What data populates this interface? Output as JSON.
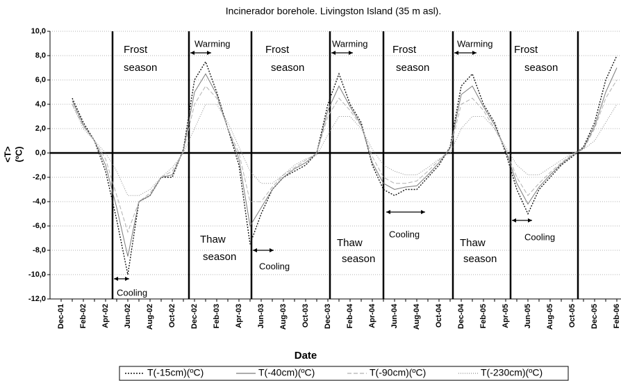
{
  "chart_data": {
    "type": "line",
    "title": "Incinerador borehole. Livingston Island (35 m asl).",
    "x_label": "Date",
    "y_label": [
      "<T>",
      "(ºC)"
    ],
    "categories": [
      "Dec-01",
      null,
      "Feb-02",
      null,
      "Apr-02",
      null,
      "Jun-02",
      null,
      "Aug-02",
      null,
      "Oct-02",
      null,
      "Dec-02",
      null,
      "Feb-03",
      null,
      "Apr-03",
      null,
      "Jun-03",
      null,
      "Aug-03",
      null,
      "Oct-03",
      null,
      "Dec-03",
      null,
      "Feb-04",
      null,
      "Apr-04",
      null,
      "Jun-04",
      null,
      "Aug-04",
      null,
      "Oct-04",
      null,
      "Dec-04",
      null,
      "Feb-05",
      null,
      "Apr-05",
      null,
      "Jun-05",
      null,
      "Aug-05",
      null,
      "Oct-05",
      null,
      "Dec-05",
      null,
      "Feb-06"
    ],
    "series": [
      {
        "name": "T(-15cm)(ºC)",
        "color": "#111111",
        "dash": "2,2",
        "values": [
          null,
          4.5,
          2.5,
          1.0,
          -1.5,
          -5.5,
          -10.0,
          -4.0,
          -3.5,
          -2.0,
          -2.0,
          0.3,
          6.0,
          7.5,
          5.0,
          2.0,
          -1.0,
          -7.5,
          -5.0,
          -3.0,
          -2.0,
          -1.5,
          -1.0,
          0.0,
          4.0,
          6.5,
          4.0,
          2.5,
          -1.0,
          -3.0,
          -3.5,
          -3.0,
          -3.0,
          -2.0,
          -1.0,
          0.5,
          5.5,
          6.5,
          4.0,
          2.5,
          0.0,
          -3.0,
          -5.0,
          -3.0,
          -2.0,
          -1.0,
          -0.3,
          0.5,
          2.5,
          6.0,
          8.0
        ]
      },
      {
        "name": "T(-40cm)(ºC)",
        "color": "#7a7a7a",
        "dash": "",
        "values": [
          null,
          4.3,
          2.3,
          1.0,
          -1.0,
          -4.5,
          -8.5,
          -4.0,
          -3.5,
          -2.0,
          -1.8,
          0.2,
          5.0,
          6.5,
          4.8,
          2.0,
          -0.5,
          -6.0,
          -4.5,
          -3.0,
          -2.0,
          -1.3,
          -0.8,
          0.0,
          3.5,
          5.5,
          3.8,
          2.3,
          -0.8,
          -2.5,
          -3.0,
          -2.8,
          -2.7,
          -1.8,
          -0.8,
          0.4,
          4.8,
          5.5,
          3.8,
          2.3,
          0.2,
          -2.5,
          -4.2,
          -2.8,
          -1.8,
          -0.9,
          -0.2,
          0.4,
          2.2,
          5.0,
          7.0
        ]
      },
      {
        "name": "T(-90cm)(ºC)",
        "color": "#b0b0b0",
        "dash": "6,3",
        "values": [
          null,
          4.0,
          2.2,
          1.0,
          -0.5,
          -3.5,
          -6.5,
          -4.0,
          -3.3,
          -2.0,
          -1.5,
          0.1,
          4.0,
          5.5,
          4.5,
          2.0,
          0.0,
          -4.0,
          -4.0,
          -2.8,
          -1.8,
          -1.2,
          -0.6,
          0.0,
          3.0,
          4.5,
          3.5,
          2.2,
          -0.3,
          -2.0,
          -2.5,
          -2.5,
          -2.3,
          -1.5,
          -0.6,
          0.3,
          4.0,
          4.5,
          3.5,
          2.0,
          0.3,
          -2.0,
          -3.5,
          -2.5,
          -1.6,
          -0.8,
          -0.1,
          0.3,
          2.0,
          4.5,
          6.0
        ]
      },
      {
        "name": "T(-230cm)(ºC)",
        "color": "#8c8c8c",
        "dash": "1,2",
        "values": [
          null,
          4.0,
          2.0,
          1.0,
          0.0,
          -1.5,
          -3.5,
          -3.5,
          -3.0,
          -2.0,
          -1.2,
          0.0,
          2.0,
          4.0,
          4.0,
          2.5,
          0.5,
          -1.5,
          -2.5,
          -2.5,
          -1.8,
          -1.0,
          -0.5,
          -0.2,
          1.5,
          3.0,
          3.0,
          2.0,
          0.3,
          -1.0,
          -1.5,
          -1.8,
          -1.8,
          -1.2,
          -0.5,
          0.0,
          2.0,
          3.0,
          3.0,
          2.0,
          0.5,
          -1.0,
          -1.8,
          -1.8,
          -1.2,
          -0.6,
          0.0,
          0.3,
          1.0,
          2.5,
          4.0
        ]
      }
    ],
    "ylim": [
      -12,
      10
    ],
    "yticks": [
      {
        "value": -12,
        "label": "-12,0"
      },
      {
        "value": -10,
        "label": "-10,0"
      },
      {
        "value": -8,
        "label": "-8,0"
      },
      {
        "value": -6,
        "label": "-6,0"
      },
      {
        "value": -4,
        "label": "-4,0"
      },
      {
        "value": -2,
        "label": "-2,0"
      },
      {
        "value": 0,
        "label": "0,0"
      },
      {
        "value": 2,
        "label": "2,0"
      },
      {
        "value": 4,
        "label": "4,0"
      },
      {
        "value": 6,
        "label": "6,0"
      },
      {
        "value": 8,
        "label": "8,0"
      },
      {
        "value": 10,
        "label": "10,0"
      }
    ],
    "grid": true,
    "legend": "bottom",
    "annotations": [
      "Frost",
      "season",
      "Warming",
      "Frost",
      "season",
      "Warming",
      "Frost",
      "season",
      "Warming",
      "Frost",
      "season",
      "Thaw",
      "season",
      "Thaw",
      "season",
      "Thaw",
      "season",
      "Cooling",
      "Cooling",
      "Cooling",
      "Cooling"
    ]
  }
}
